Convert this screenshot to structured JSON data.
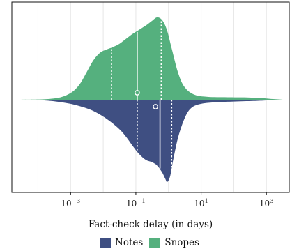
{
  "chart_data": {
    "type": "violin",
    "xscale": "log",
    "xlabel": "Fact-check delay (in days)",
    "xlim_log10": [
      -4.8,
      3.7
    ],
    "xticks": [
      {
        "value": 0.001,
        "base": "10",
        "exp": "−3"
      },
      {
        "value": 0.1,
        "base": "10",
        "exp": "−1"
      },
      {
        "value": 10,
        "base": "10",
        "exp": "1"
      },
      {
        "value": 1000,
        "base": "10",
        "exp": "3"
      }
    ],
    "grid": true,
    "legend_position": "bottom",
    "series": [
      {
        "name": "Snopes",
        "side": "top",
        "color": "#55b07e",
        "mean": 0.11,
        "median": 0.11,
        "q1": 0.018,
        "q3": 0.6,
        "density": [
          [
            -4.6,
            0.0
          ],
          [
            -4.0,
            0.003
          ],
          [
            -3.6,
            0.012
          ],
          [
            -3.3,
            0.03
          ],
          [
            -3.1,
            0.06
          ],
          [
            -2.9,
            0.11
          ],
          [
            -2.7,
            0.2
          ],
          [
            -2.5,
            0.34
          ],
          [
            -2.3,
            0.48
          ],
          [
            -2.1,
            0.57
          ],
          [
            -1.9,
            0.61
          ],
          [
            -1.7,
            0.64
          ],
          [
            -1.5,
            0.68
          ],
          [
            -1.3,
            0.74
          ],
          [
            -1.1,
            0.8
          ],
          [
            -0.9,
            0.85
          ],
          [
            -0.7,
            0.9
          ],
          [
            -0.5,
            0.96
          ],
          [
            -0.35,
            1.0
          ],
          [
            -0.2,
            0.97
          ],
          [
            -0.05,
            0.85
          ],
          [
            0.1,
            0.62
          ],
          [
            0.3,
            0.32
          ],
          [
            0.5,
            0.15
          ],
          [
            0.8,
            0.06
          ],
          [
            1.2,
            0.035
          ],
          [
            1.8,
            0.03
          ],
          [
            2.4,
            0.028
          ],
          [
            2.9,
            0.018
          ],
          [
            3.2,
            0.008
          ],
          [
            3.5,
            0.0
          ]
        ]
      },
      {
        "name": "Notes",
        "side": "bottom",
        "color": "#3f4f82",
        "mean": 0.4,
        "median": 0.55,
        "q1": 0.11,
        "q3": 1.25,
        "density": [
          [
            -4.6,
            0.0
          ],
          [
            -4.0,
            0.004
          ],
          [
            -3.6,
            0.015
          ],
          [
            -3.3,
            0.03
          ],
          [
            -3.0,
            0.05
          ],
          [
            -2.7,
            0.08
          ],
          [
            -2.4,
            0.12
          ],
          [
            -2.1,
            0.18
          ],
          [
            -1.8,
            0.26
          ],
          [
            -1.5,
            0.36
          ],
          [
            -1.3,
            0.45
          ],
          [
            -1.1,
            0.56
          ],
          [
            -0.9,
            0.66
          ],
          [
            -0.7,
            0.73
          ],
          [
            -0.5,
            0.76
          ],
          [
            -0.35,
            0.8
          ],
          [
            -0.2,
            0.88
          ],
          [
            -0.1,
            0.96
          ],
          [
            -0.04,
            1.0
          ],
          [
            0.05,
            0.93
          ],
          [
            0.15,
            0.72
          ],
          [
            0.3,
            0.45
          ],
          [
            0.5,
            0.22
          ],
          [
            0.7,
            0.1
          ],
          [
            1.0,
            0.05
          ],
          [
            1.5,
            0.03
          ],
          [
            2.0,
            0.022
          ],
          [
            2.6,
            0.015
          ],
          [
            3.0,
            0.008
          ],
          [
            3.4,
            0.0
          ]
        ]
      }
    ]
  }
}
